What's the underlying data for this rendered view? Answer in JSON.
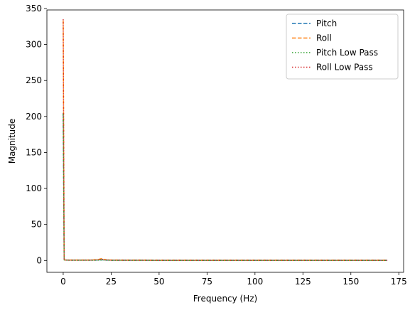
{
  "chart_data": {
    "type": "line",
    "title": "",
    "xlabel": "Frequency (Hz)",
    "ylabel": "Magnitude",
    "xlim": [
      -8.5,
      177.5
    ],
    "ylim": [
      -16.5,
      348
    ],
    "xticks": [
      0,
      25,
      50,
      75,
      100,
      125,
      150,
      175
    ],
    "yticks": [
      0,
      50,
      100,
      150,
      200,
      250,
      300,
      350
    ],
    "grid": false,
    "legend_position": "top-right",
    "series": [
      {
        "name": "Pitch",
        "color": "#1f77b4",
        "dash": "dashed",
        "x": [
          0,
          0.5,
          1,
          5,
          10,
          15,
          18,
          20,
          22,
          25,
          50,
          75,
          100,
          125,
          150,
          169
        ],
        "y": [
          205,
          0.8,
          0.5,
          0.4,
          0.4,
          0.4,
          0.6,
          0.9,
          0.5,
          0.3,
          0.2,
          0.2,
          0.2,
          0.2,
          0.2,
          0.2
        ]
      },
      {
        "name": "Roll",
        "color": "#ff7f0e",
        "dash": "dashed",
        "x": [
          0,
          0.5,
          1,
          5,
          10,
          15,
          18,
          20,
          22,
          25,
          50,
          75,
          100,
          125,
          150,
          169
        ],
        "y": [
          333,
          1.0,
          0.6,
          0.5,
          0.5,
          0.6,
          1.2,
          2.5,
          1.0,
          0.5,
          0.3,
          0.3,
          0.3,
          0.3,
          0.3,
          0.3
        ]
      },
      {
        "name": "Pitch Low Pass",
        "color": "#2ca02c",
        "dash": "dotted",
        "x": [
          0,
          0.5,
          1,
          5,
          10,
          15,
          18,
          20,
          22,
          25,
          50,
          75,
          100,
          125,
          150,
          169
        ],
        "y": [
          203,
          0.7,
          0.4,
          0.3,
          0.3,
          0.3,
          0.4,
          0.6,
          0.4,
          0.2,
          0.1,
          0.1,
          0.1,
          0.1,
          0.1,
          0.1
        ]
      },
      {
        "name": "Roll Low Pass",
        "color": "#d62728",
        "dash": "dotted",
        "x": [
          0,
          0.5,
          1,
          5,
          10,
          15,
          18,
          20,
          22,
          25,
          50,
          75,
          100,
          125,
          150,
          169
        ],
        "y": [
          335,
          0.9,
          0.5,
          0.4,
          0.4,
          0.5,
          0.9,
          1.8,
          0.8,
          0.4,
          0.2,
          0.2,
          0.2,
          0.2,
          0.2,
          0.2
        ]
      }
    ]
  }
}
